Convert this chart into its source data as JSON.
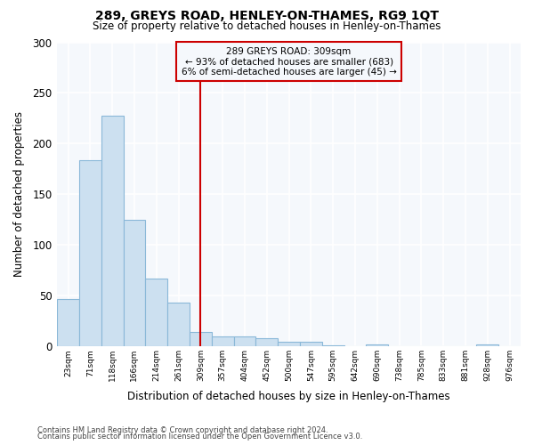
{
  "title": "289, GREYS ROAD, HENLEY-ON-THAMES, RG9 1QT",
  "subtitle": "Size of property relative to detached houses in Henley-on-Thames",
  "xlabel": "Distribution of detached houses by size in Henley-on-Thames",
  "ylabel": "Number of detached properties",
  "categories": [
    "23sqm",
    "71sqm",
    "118sqm",
    "166sqm",
    "214sqm",
    "261sqm",
    "309sqm",
    "357sqm",
    "404sqm",
    "452sqm",
    "500sqm",
    "547sqm",
    "595sqm",
    "642sqm",
    "690sqm",
    "738sqm",
    "785sqm",
    "833sqm",
    "881sqm",
    "928sqm",
    "976sqm"
  ],
  "values": [
    47,
    184,
    228,
    125,
    67,
    43,
    14,
    10,
    10,
    8,
    5,
    5,
    1,
    0,
    2,
    0,
    0,
    0,
    0,
    2,
    0
  ],
  "bar_color": "#cce0f0",
  "bar_edge_color": "#8ab8d8",
  "vline_x_index": 6,
  "vline_color": "#cc0000",
  "annotation_box_color": "#cc0000",
  "annotation_text_line1": "289 GREYS ROAD: 309sqm",
  "annotation_text_line2": "← 93% of detached houses are smaller (683)",
  "annotation_text_line3": "6% of semi-detached houses are larger (45) →",
  "footnote1": "Contains HM Land Registry data © Crown copyright and database right 2024.",
  "footnote2": "Contains public sector information licensed under the Open Government Licence v3.0.",
  "ylim": [
    0,
    300
  ],
  "yticks": [
    0,
    50,
    100,
    150,
    200,
    250,
    300
  ],
  "background_color": "#ffffff",
  "plot_bg_color": "#f5f8fc",
  "grid_color": "#ffffff"
}
